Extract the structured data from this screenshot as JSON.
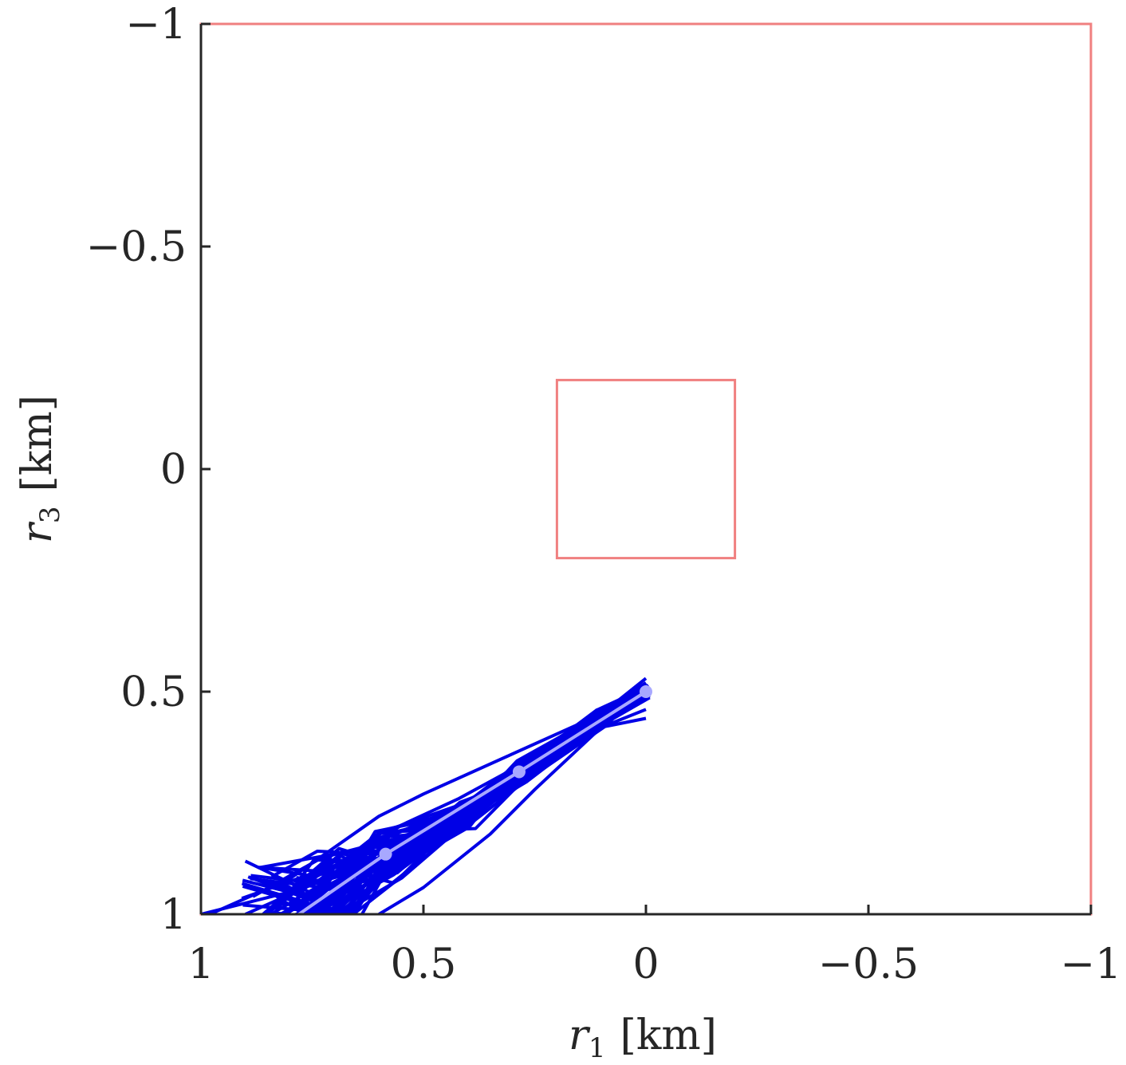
{
  "chart_data": {
    "type": "line",
    "xlabel": {
      "var": "r",
      "sub": "1",
      "unit": "[km]"
    },
    "ylabel": {
      "var": "r",
      "sub": "3",
      "unit": "[km]"
    },
    "xlim": [
      1,
      -1
    ],
    "ylim": [
      1,
      -1
    ],
    "x_reversed": true,
    "y_reversed": true,
    "x_ticks": [
      1,
      0.5,
      0,
      -0.5,
      -1
    ],
    "x_tick_labels": [
      "1",
      "0.5",
      "0",
      "−0.5",
      "−1"
    ],
    "y_ticks": [
      -1,
      -0.5,
      0,
      0.5,
      1
    ],
    "y_tick_labels": [
      "−1",
      "−0.5",
      "0",
      "0.5",
      "1"
    ],
    "grid": false,
    "colors": {
      "boundary": "#f08080",
      "trajectories": "#0000e6",
      "nominal": "#a8a8ff",
      "axis": "#262626"
    },
    "regions": [
      {
        "name": "outer-boundary",
        "x": [
          -1,
          1
        ],
        "y": [
          -1,
          1
        ]
      },
      {
        "name": "target-box",
        "x": [
          -0.2,
          0.2
        ],
        "y": [
          -0.2,
          0.2
        ]
      }
    ],
    "trajectory_band": {
      "count": 60,
      "spine": [
        [
          0.0,
          0.5
        ],
        [
          0.1,
          0.56
        ],
        [
          0.28,
          0.68
        ],
        [
          0.4,
          0.78
        ],
        [
          0.58,
          0.87
        ],
        [
          0.7,
          0.94
        ],
        [
          0.85,
          1.0
        ]
      ],
      "spread": [
        0.015,
        0.02,
        0.025,
        0.035,
        0.06,
        0.09,
        0.12
      ],
      "outliers": [
        [
          [
            0.0,
            0.56
          ],
          [
            0.1,
            0.58
          ],
          [
            0.25,
            0.72
          ],
          [
            0.35,
            0.82
          ],
          [
            0.5,
            0.94
          ],
          [
            0.6,
            1.0
          ]
        ],
        [
          [
            0.0,
            0.48
          ],
          [
            0.1,
            0.55
          ],
          [
            0.3,
            0.64
          ],
          [
            0.5,
            0.73
          ],
          [
            0.6,
            0.78
          ],
          [
            0.8,
            0.92
          ],
          [
            0.98,
            1.0
          ]
        ],
        [
          [
            0.0,
            0.54
          ],
          [
            0.2,
            0.62
          ],
          [
            0.42,
            0.74
          ],
          [
            0.55,
            0.8
          ],
          [
            0.72,
            0.92
          ],
          [
            0.9,
            1.0
          ]
        ],
        [
          [
            0.0,
            0.47
          ],
          [
            0.1,
            0.55
          ],
          [
            0.26,
            0.67
          ],
          [
            0.45,
            0.77
          ],
          [
            0.61,
            0.84
          ],
          [
            0.8,
            0.95
          ],
          [
            1.0,
            1.0
          ]
        ]
      ]
    },
    "nominal": {
      "x": [
        0.0,
        0.285,
        0.585,
        0.78
      ],
      "y": [
        0.5,
        0.68,
        0.865,
        1.0
      ],
      "marker_indices": [
        0,
        1,
        2
      ]
    }
  }
}
